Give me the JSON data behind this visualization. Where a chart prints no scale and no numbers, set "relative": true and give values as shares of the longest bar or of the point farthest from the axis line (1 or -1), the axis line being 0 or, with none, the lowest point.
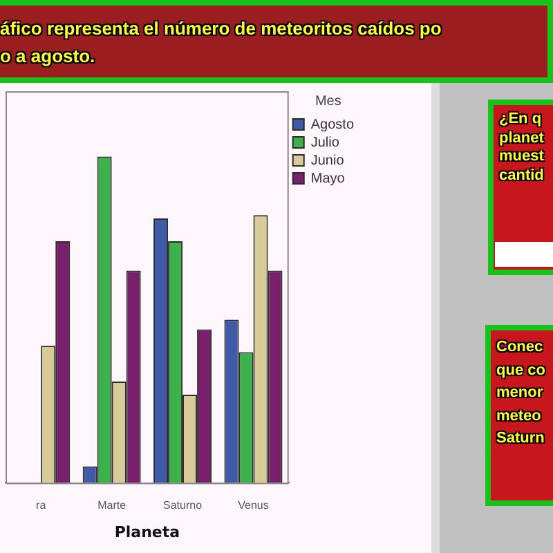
{
  "chart_data": {
    "type": "bar",
    "title": "áfico representa el número de meteoritos caídos po\no a agosto.",
    "xlabel": "Planeta",
    "legend_title": "Mes",
    "categories": [
      "ra",
      "Marte",
      "Saturno",
      "Venus"
    ],
    "relative": true,
    "series": [
      {
        "name": "Agosto",
        "color": "#3f5aa8",
        "values": [
          null,
          0.05,
          0.81,
          0.5
        ]
      },
      {
        "name": "Julio",
        "color": "#3cb14c",
        "values": [
          null,
          1,
          0.74,
          0.4
        ]
      },
      {
        "name": "Junio",
        "color": "#d8cb98",
        "values": [
          0.42,
          0.31,
          0.27,
          0.82
        ]
      },
      {
        "name": "Mayo",
        "color": "#7a1f6c",
        "values": [
          0.74,
          0.65,
          0.47,
          0.65
        ]
      }
    ],
    "legend": "top right",
    "grid": false,
    "annotations": [
      "¿En q\nplanet\nmuest\ncantid",
      "Conec\nque co\nmenor\nmeteo\nSaturn"
    ]
  }
}
